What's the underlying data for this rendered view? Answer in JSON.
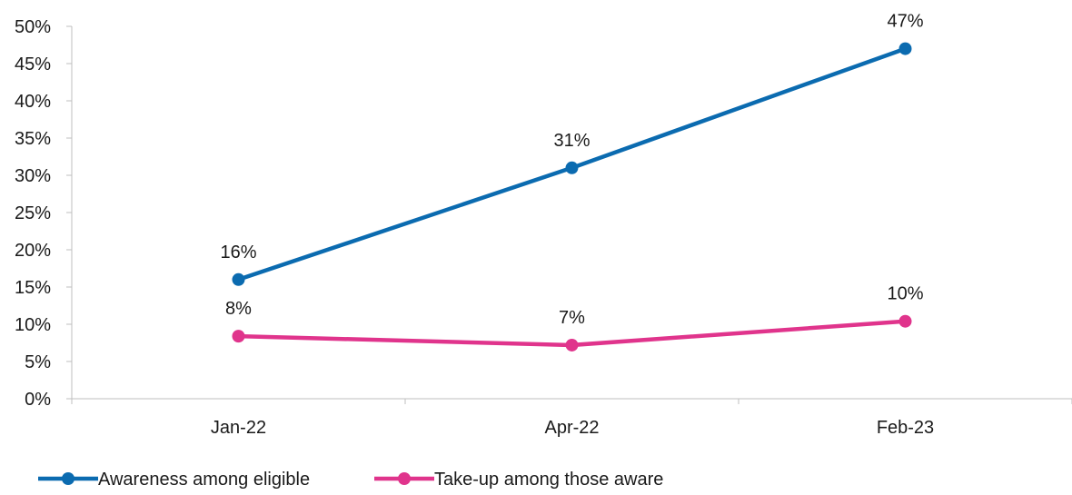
{
  "chart_data": {
    "type": "line",
    "title": "",
    "xlabel": "",
    "ylabel": "",
    "categories": [
      "Jan-22",
      "Apr-22",
      "Feb-23"
    ],
    "ylim": [
      0,
      50
    ],
    "yticks": [
      0,
      5,
      10,
      15,
      20,
      25,
      30,
      35,
      40,
      45,
      50
    ],
    "ytick_labels": [
      "0%",
      "5%",
      "10%",
      "15%",
      "20%",
      "25%",
      "30%",
      "35%",
      "40%",
      "45%",
      "50%"
    ],
    "grid": false,
    "legend_position": "bottom-left",
    "series": [
      {
        "name": "Awareness among eligible",
        "color": "#0b6bb0",
        "values": [
          16,
          31,
          47
        ],
        "labels": [
          "16%",
          "31%",
          "47%"
        ]
      },
      {
        "name": "Take-up among those aware",
        "color": "#e0348c",
        "values": [
          8.4,
          7.2,
          10.4
        ],
        "labels": [
          "8%",
          "7%",
          "10%"
        ]
      }
    ]
  }
}
